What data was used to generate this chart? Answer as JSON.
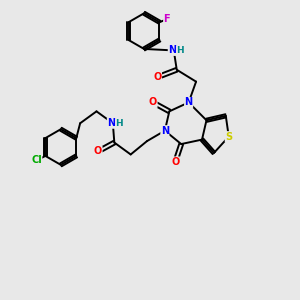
{
  "bg_color": "#e8e8e8",
  "atom_colors": {
    "C": "#000000",
    "N": "#0000ff",
    "O": "#ff0000",
    "S": "#cccc00",
    "F": "#cc00cc",
    "Cl": "#00aa00",
    "H": "#008888"
  },
  "figsize": [
    3.0,
    3.0
  ],
  "dpi": 100,
  "lw": 1.4,
  "fs": 7.0
}
